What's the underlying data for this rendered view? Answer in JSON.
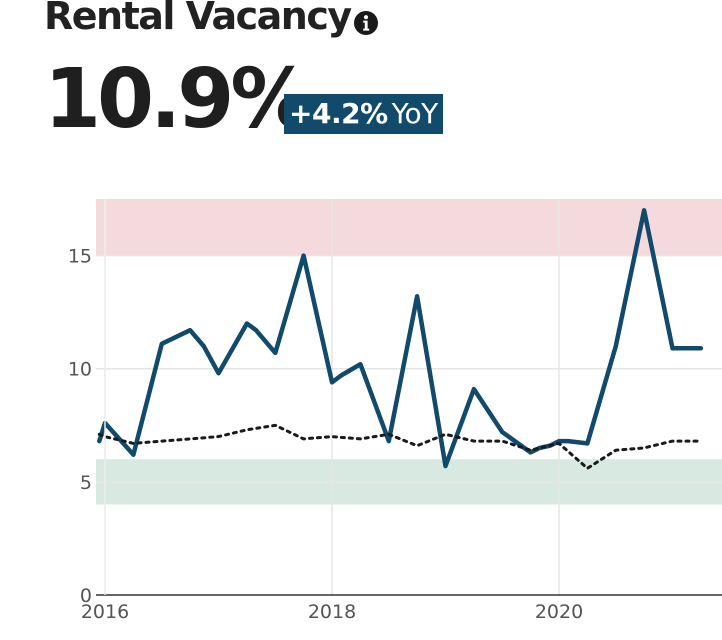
{
  "header": {
    "title": "Rental Vacancy",
    "info_icon": "info-icon",
    "value": "10.9%",
    "change": "+4.2%",
    "change_unit": "YoY"
  },
  "colors": {
    "series_main": "#114a6b",
    "series_benchmark": "#1a1a1a",
    "high_band": "#f5dadd",
    "low_band": "#d8e9e1",
    "badge_bg": "#114a6b"
  },
  "chart_data": {
    "type": "line",
    "title": "",
    "xlabel": "",
    "ylabel": "",
    "xlim": [
      2015.95,
      2021.5
    ],
    "ylim": [
      0,
      17.5
    ],
    "grid": true,
    "x_ticks": [
      2016,
      2018,
      2020
    ],
    "x_tick_labels": [
      "2016",
      "2018",
      "2020"
    ],
    "y_ticks": [
      0,
      5,
      10,
      15
    ],
    "y_tick_labels": [
      "0",
      "5",
      "10",
      "15"
    ],
    "bands": [
      {
        "y0": 15,
        "y1": 17.5,
        "color": "#f5dadd"
      },
      {
        "y0": 4,
        "y1": 6,
        "color": "#d8e9e1"
      }
    ],
    "series": [
      {
        "style": "solid",
        "color": "#114a6b",
        "x": [
          2015.95,
          2016.0,
          2016.25,
          2016.5,
          2016.75,
          2016.87,
          2017.0,
          2017.08,
          2017.25,
          2017.33,
          2017.5,
          2017.75,
          2018.0,
          2018.08,
          2018.25,
          2018.5,
          2018.75,
          2019.0,
          2019.25,
          2019.5,
          2019.75,
          2019.83,
          2019.92,
          2020.0,
          2020.08,
          2020.25,
          2020.5,
          2020.75,
          2021.0,
          2021.25
        ],
        "y": [
          6.8,
          7.6,
          6.2,
          11.1,
          11.7,
          11.0,
          9.8,
          10.5,
          12.0,
          11.7,
          10.7,
          15.0,
          9.4,
          9.7,
          10.2,
          6.8,
          13.2,
          5.7,
          9.1,
          7.2,
          6.3,
          6.5,
          6.6,
          6.8,
          6.8,
          6.7,
          11.0,
          17.0,
          10.9,
          10.9
        ]
      },
      {
        "style": "dotted",
        "color": "#1a1a1a",
        "x": [
          2015.95,
          2016.0,
          2016.25,
          2016.5,
          2016.75,
          2017.0,
          2017.25,
          2017.5,
          2017.75,
          2018.0,
          2018.25,
          2018.5,
          2018.75,
          2019.0,
          2019.25,
          2019.5,
          2019.75,
          2020.0,
          2020.25,
          2020.5,
          2020.75,
          2021.0,
          2021.25
        ],
        "y": [
          7.1,
          7.0,
          6.7,
          6.8,
          6.9,
          7.0,
          7.3,
          7.5,
          6.9,
          7.0,
          6.9,
          7.1,
          6.6,
          7.1,
          6.8,
          6.8,
          6.4,
          6.7,
          5.6,
          6.4,
          6.5,
          6.8,
          6.8
        ]
      }
    ]
  }
}
